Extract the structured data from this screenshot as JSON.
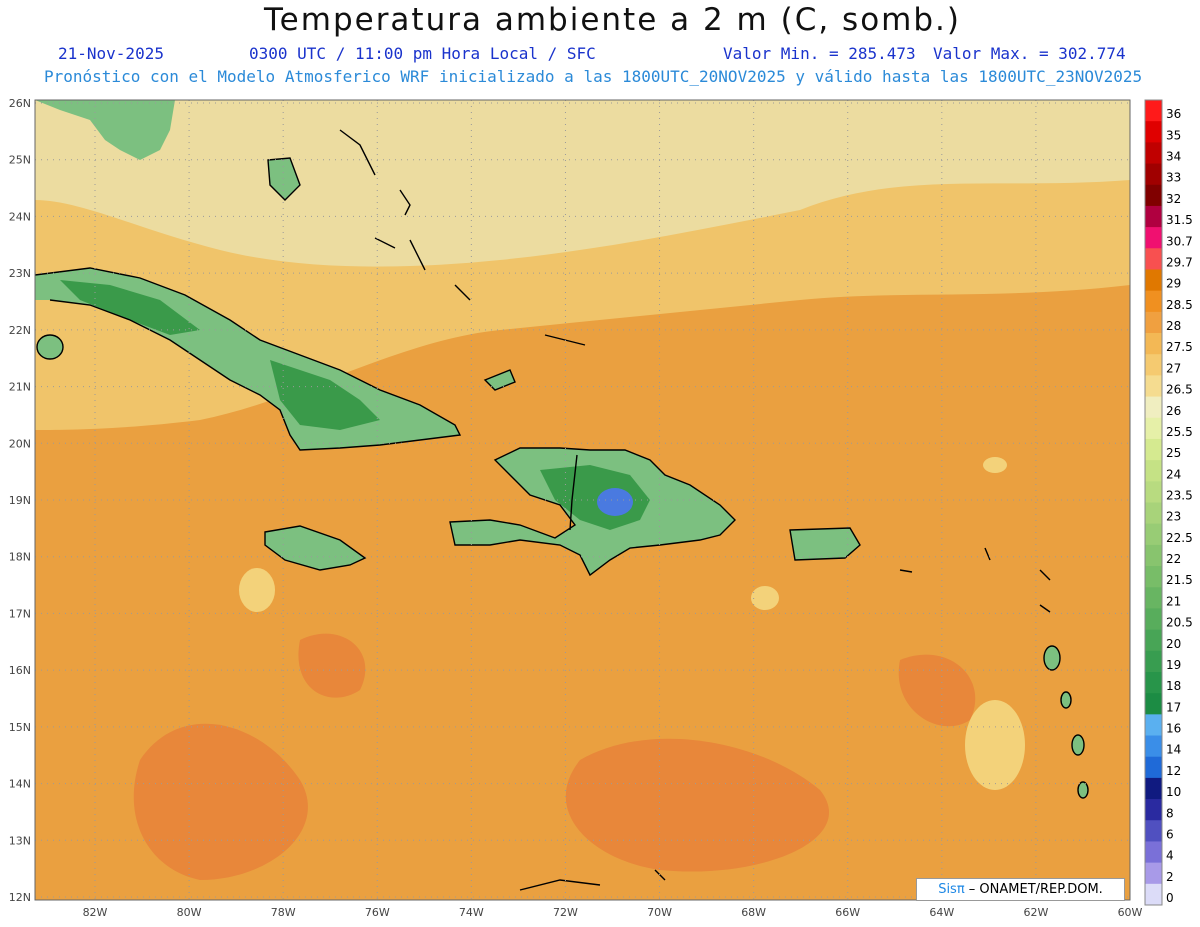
{
  "header": {
    "title": "Temperatura ambiente a 2 m (C, somb.)",
    "date": "21-Nov-2025",
    "time": "0300 UTC / 11:00 pm Hora Local / SFC",
    "min_label": "Valor Min. = 285.473",
    "max_label": "Valor Max. = 302.774",
    "subtitle": "Pronóstico con el Modelo Atmosferico WRF inicializado a las 1800UTC_20NOV2025 y válido hasta las  1800UTC_23NOV2025"
  },
  "axes": {
    "lat_labels": [
      "26N",
      "25N",
      "24N",
      "23N",
      "22N",
      "21N",
      "20N",
      "19N",
      "18N",
      "17N",
      "16N",
      "15N",
      "14N",
      "13N",
      "12N"
    ],
    "lon_labels": [
      "82W",
      "80W",
      "78W",
      "76W",
      "74W",
      "72W",
      "70W",
      "68W",
      "66W",
      "64W",
      "62W",
      "60W"
    ]
  },
  "colorbar": {
    "labels": [
      "36",
      "35",
      "34",
      "33",
      "32",
      "31.5",
      "30.7",
      "29.7",
      "29",
      "28.5",
      "28",
      "27.5",
      "27",
      "26.5",
      "26",
      "25.5",
      "25",
      "24",
      "23.5",
      "23",
      "22.5",
      "22",
      "21.5",
      "21",
      "20.5",
      "20",
      "19",
      "18",
      "17",
      "16",
      "14",
      "12",
      "10",
      "8",
      "6",
      "4",
      "2",
      "0"
    ],
    "colors": [
      "#ff1a1a",
      "#e00000",
      "#c00000",
      "#a00000",
      "#800000",
      "#b00040",
      "#f01070",
      "#f85050",
      "#e07800",
      "#f09020",
      "#f0a040",
      "#f3b855",
      "#f5ca70",
      "#f5dc90",
      "#f0eec0",
      "#e6f0a8",
      "#d5ea90",
      "#c5e285",
      "#b8db80",
      "#a8d37a",
      "#98cc75",
      "#88c46e",
      "#78bd68",
      "#68b562",
      "#58ad5c",
      "#48a556",
      "#389d50",
      "#28954a",
      "#1c8c44",
      "#5ab0f0",
      "#3a8ee8",
      "#1f6ad8",
      "#101a80",
      "#2a2aa0",
      "#5050c0",
      "#7a70d8",
      "#a89ae8",
      "#dcdcf8"
    ]
  },
  "map": {
    "ocean_color": "#eaa040",
    "warm_patch_color": "#e8873a",
    "cool_band_color": "#ecdca0",
    "land_color": "#7cc080",
    "highland_color": "#3a9a4a",
    "peak_color": "#4a7ae0"
  },
  "credit": {
    "brand": "Sisπ",
    "text": " –  ONAMET/REP.DOM."
  }
}
